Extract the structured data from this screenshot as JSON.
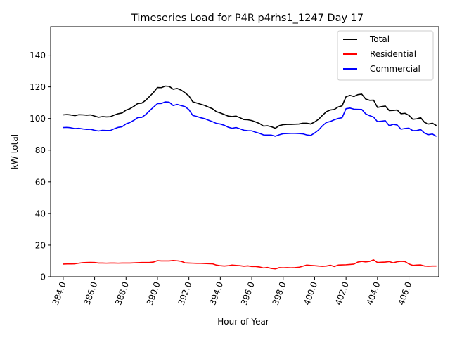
{
  "chart_data": {
    "type": "line",
    "title": "Timeseries Load for P4R p4rhs1_1247  Day 17",
    "xlabel": "Hour of Year",
    "ylabel": "kW total",
    "xlim": [
      383.2,
      407.9
    ],
    "ylim": [
      0,
      158
    ],
    "grid": false,
    "legend_position": "top-right",
    "xticks": [
      384,
      386,
      388,
      390,
      392,
      394,
      396,
      398,
      400,
      402,
      404,
      406
    ],
    "xtick_labels": [
      "384.0",
      "386.0",
      "388.0",
      "390.0",
      "392.0",
      "394.0",
      "396.0",
      "398.0",
      "400.0",
      "402.0",
      "404.0",
      "406.0"
    ],
    "yticks": [
      0,
      20,
      40,
      60,
      80,
      100,
      120,
      140
    ],
    "ytick_labels": [
      "0",
      "20",
      "40",
      "60",
      "80",
      "100",
      "120",
      "140"
    ],
    "x_start": 384.0,
    "x_step": 0.25,
    "series": [
      {
        "name": "Total",
        "color": "#000000",
        "values": [
          102.3,
          102.5,
          102.2,
          101.8,
          102.4,
          102.3,
          102.1,
          102.3,
          101.5,
          100.8,
          101.2,
          101.0,
          101.1,
          102.2,
          103.0,
          103.5,
          105.3,
          106.2,
          107.7,
          109.5,
          109.7,
          111.5,
          114.0,
          116.5,
          119.6,
          119.5,
          120.5,
          120.3,
          118.5,
          119.0,
          118.0,
          116.3,
          114.3,
          110.5,
          109.8,
          109.0,
          108.3,
          107.2,
          106.2,
          104.3,
          103.5,
          102.5,
          101.5,
          101.2,
          101.5,
          100.5,
          99.3,
          99.2,
          98.7,
          97.8,
          96.8,
          95.2,
          95.4,
          94.8,
          93.8,
          95.5,
          96.1,
          96.3,
          96.3,
          96.4,
          96.5,
          97.0,
          97.0,
          96.5,
          97.8,
          99.5,
          102.0,
          104.3,
          105.4,
          105.7,
          107.3,
          108.0,
          113.8,
          114.6,
          113.9,
          115.1,
          115.4,
          112.3,
          111.5,
          111.6,
          107.0,
          107.5,
          107.9,
          105.0,
          105.1,
          105.4,
          103.0,
          103.3,
          102.0,
          99.5,
          99.8,
          100.5,
          97.5,
          96.5,
          97.0,
          95.5
        ]
      },
      {
        "name": "Residential",
        "color": "#ff0000",
        "values": [
          8.0,
          8.1,
          8.1,
          8.2,
          8.6,
          8.9,
          9.0,
          9.1,
          9.0,
          8.7,
          8.7,
          8.6,
          8.7,
          8.7,
          8.6,
          8.7,
          8.7,
          8.7,
          8.8,
          8.9,
          9.0,
          9.0,
          9.1,
          9.3,
          10.2,
          10.0,
          10.0,
          10.0,
          10.3,
          10.1,
          9.8,
          8.8,
          8.7,
          8.6,
          8.5,
          8.5,
          8.4,
          8.3,
          8.2,
          7.4,
          7.0,
          6.8,
          7.0,
          7.4,
          7.2,
          7.0,
          6.7,
          6.9,
          6.5,
          6.5,
          6.2,
          5.6,
          5.9,
          5.3,
          5.0,
          5.8,
          5.7,
          5.8,
          5.7,
          5.8,
          6.0,
          6.7,
          7.4,
          7.2,
          7.0,
          6.8,
          6.6,
          6.8,
          7.3,
          6.5,
          7.4,
          7.5,
          7.6,
          7.8,
          8.0,
          9.3,
          9.7,
          9.4,
          9.7,
          10.7,
          9.0,
          9.2,
          9.3,
          9.6,
          8.8,
          9.5,
          9.8,
          9.6,
          8.1,
          7.2,
          7.4,
          7.5,
          6.8,
          6.7,
          6.8,
          6.8
        ]
      },
      {
        "name": "Commercial",
        "color": "#0000ff",
        "values": [
          94.3,
          94.4,
          94.1,
          93.6,
          93.8,
          93.4,
          93.1,
          93.2,
          92.5,
          92.1,
          92.5,
          92.4,
          92.4,
          93.5,
          94.4,
          94.8,
          96.6,
          97.5,
          98.9,
          100.6,
          100.7,
          102.5,
          104.9,
          107.2,
          109.4,
          109.5,
          110.5,
          110.3,
          108.2,
          108.9,
          108.2,
          107.5,
          105.6,
          101.9,
          101.3,
          100.5,
          99.9,
          98.9,
          98.0,
          96.9,
          96.5,
          95.7,
          94.5,
          93.8,
          94.3,
          93.5,
          92.6,
          92.3,
          92.2,
          91.3,
          90.6,
          89.6,
          89.5,
          89.5,
          88.8,
          89.7,
          90.4,
          90.5,
          90.6,
          90.6,
          90.5,
          90.3,
          89.6,
          89.3,
          90.8,
          92.7,
          95.4,
          97.5,
          98.1,
          99.2,
          100.0,
          100.5,
          106.2,
          106.6,
          105.9,
          105.8,
          105.7,
          102.9,
          101.8,
          100.9,
          98.0,
          98.3,
          98.6,
          95.4,
          96.3,
          95.9,
          93.2,
          93.7,
          93.9,
          92.3,
          92.4,
          93.0,
          90.7,
          89.8,
          90.2,
          88.7
        ]
      }
    ]
  }
}
